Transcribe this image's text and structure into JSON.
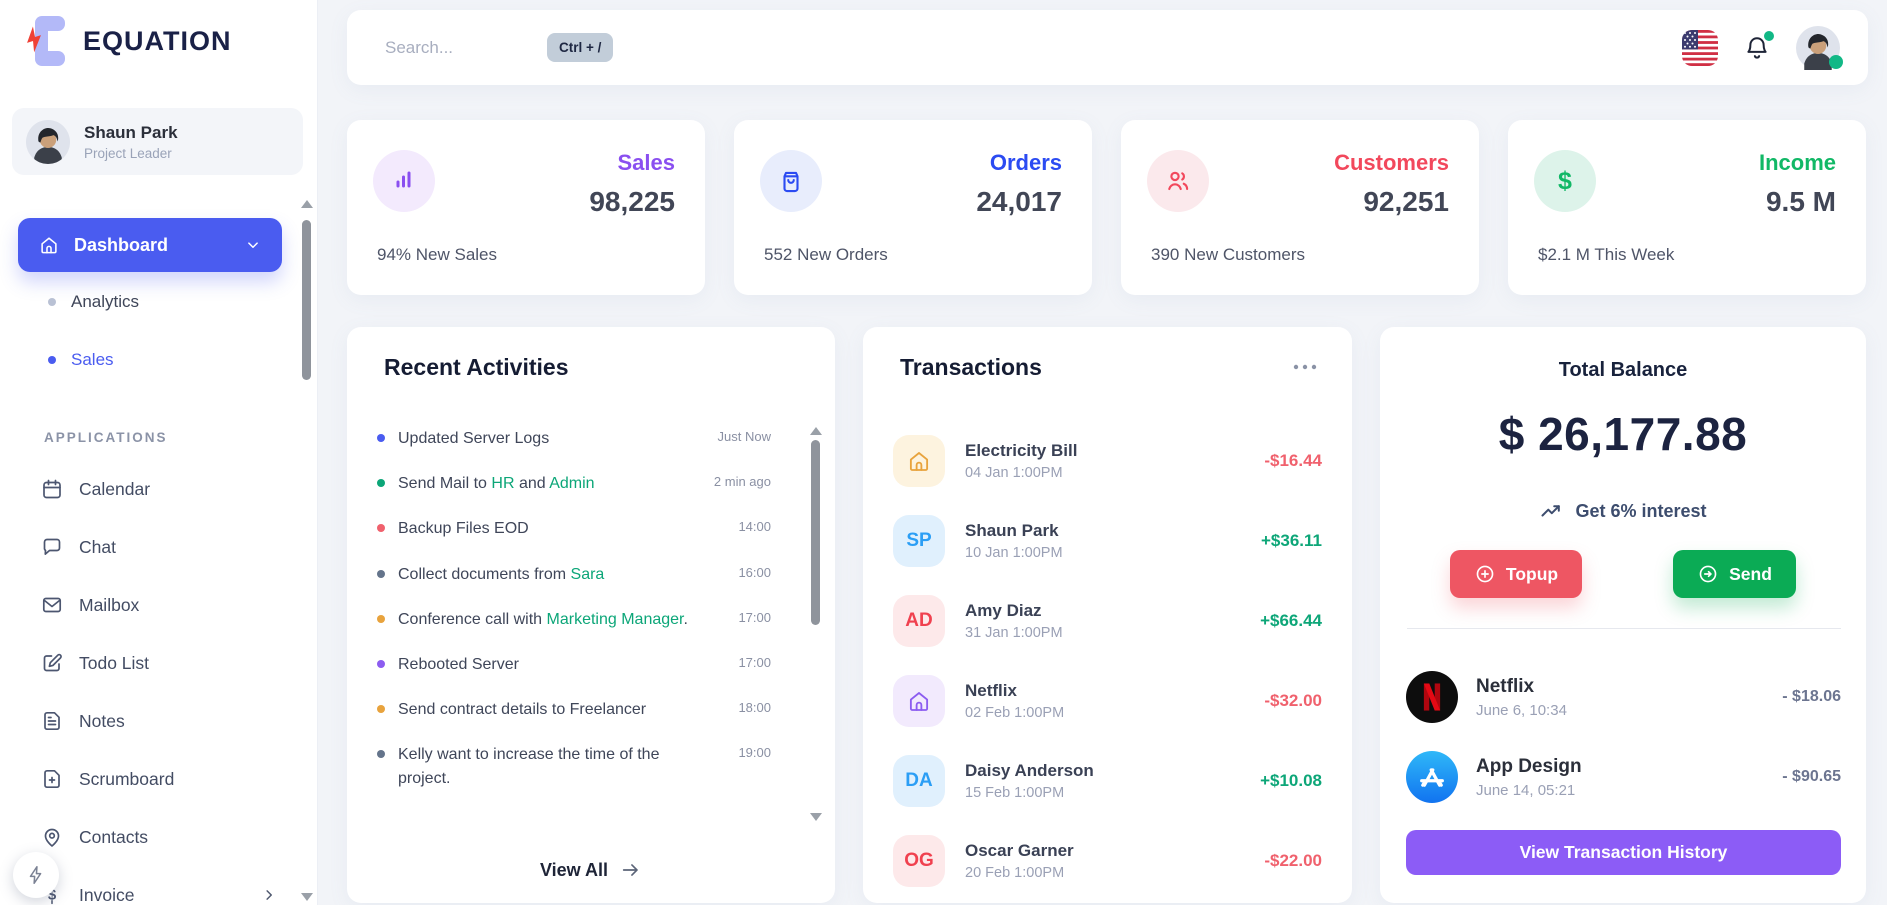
{
  "brand": {
    "name": "EQUATION",
    "logo_icon": "bolt-logo-icon"
  },
  "sidebar": {
    "user": {
      "name": "Shaun Park",
      "role": "Project Leader"
    },
    "dashboard": {
      "label": "Dashboard",
      "icon": "home-icon"
    },
    "submenu": [
      {
        "label": "Analytics",
        "dot_color": "#b9c1d4",
        "active": false
      },
      {
        "label": "Sales",
        "dot_color": "#4a5cf0",
        "active": true
      }
    ],
    "section_label": "APPLICATIONS",
    "apps": [
      {
        "label": "Calendar",
        "icon": "calendar-icon"
      },
      {
        "label": "Chat",
        "icon": "chat-icon"
      },
      {
        "label": "Mailbox",
        "icon": "mailbox-icon"
      },
      {
        "label": "Todo List",
        "icon": "todo-icon"
      },
      {
        "label": "Notes",
        "icon": "notes-icon"
      },
      {
        "label": "Scrumboard",
        "icon": "scrumboard-icon"
      },
      {
        "label": "Contacts",
        "icon": "contacts-icon"
      },
      {
        "label": "Invoice",
        "icon": "invoice-icon",
        "chevron": true
      }
    ]
  },
  "topbar": {
    "search_placeholder": "Search...",
    "shortcut_badge": "Ctrl + /",
    "flag": "us-flag-icon",
    "bell": "bell-icon",
    "status_color": "#12b886"
  },
  "stats": [
    {
      "title": "Sales",
      "value": "98,225",
      "note": "94% New Sales",
      "icon": "bar-chart-icon",
      "accent": "#8a4ff0",
      "icon_bg": "#f3eafd"
    },
    {
      "title": "Orders",
      "value": "24,017",
      "note": "552 New Orders",
      "icon": "shopping-bag-icon",
      "accent": "#2b4bf2",
      "icon_bg": "#e8edfc"
    },
    {
      "title": "Customers",
      "value": "92,251",
      "note": "390 New Customers",
      "icon": "users-icon",
      "accent": "#f2485c",
      "icon_bg": "#fbe9ec"
    },
    {
      "title": "Income",
      "value": "9.5 M",
      "note": "$2.1 M This Week",
      "icon": "dollar-icon",
      "accent": "#11b866",
      "icon_bg": "#ddf3ea"
    }
  ],
  "recent_activities": {
    "title": "Recent Activities",
    "view_all_label": "View All",
    "items": [
      {
        "segments": [
          {
            "text": "Updated Server Logs"
          }
        ],
        "time": "Just Now",
        "dot": "#4a5cf0"
      },
      {
        "segments": [
          {
            "text": "Send Mail to "
          },
          {
            "text": "HR",
            "highlight": true
          },
          {
            "text": " and "
          },
          {
            "text": "Admin",
            "highlight": true
          }
        ],
        "time": "2 min ago",
        "dot": "#0ca678"
      },
      {
        "segments": [
          {
            "text": "Backup Files EOD"
          }
        ],
        "time": "14:00",
        "dot": "#f0616d"
      },
      {
        "segments": [
          {
            "text": "Collect documents from "
          },
          {
            "text": "Sara",
            "highlight": true
          }
        ],
        "time": "16:00",
        "dot": "#64748b"
      },
      {
        "segments": [
          {
            "text": "Conference call with "
          },
          {
            "text": "Marketing Manager",
            "highlight": true
          },
          {
            "text": "."
          }
        ],
        "time": "17:00",
        "dot": "#e8a33d"
      },
      {
        "segments": [
          {
            "text": "Rebooted Server"
          }
        ],
        "time": "17:00",
        "dot": "#8c5cf0"
      },
      {
        "segments": [
          {
            "text": "Send contract details to Freelancer"
          }
        ],
        "time": "18:00",
        "dot": "#e8a33d"
      },
      {
        "segments": [
          {
            "text": "Kelly want to increase the time of the project."
          }
        ],
        "time": "19:00",
        "dot": "#64748b"
      }
    ]
  },
  "transactions": {
    "title": "Transactions",
    "menu_icon": "ellipsis-icon",
    "debit_color": "#f0616d",
    "credit_color": "#0da678",
    "items": [
      {
        "name": "Electricity Bill",
        "date": "04 Jan 1:00PM",
        "amount": "-$16.44",
        "direction": "debit",
        "avatar": {
          "type": "icon",
          "icon": "home-icon",
          "fg": "#e8a33d",
          "bg": "#fdf3df"
        }
      },
      {
        "name": "Shaun Park",
        "date": "10 Jan 1:00PM",
        "amount": "+$36.11",
        "direction": "credit",
        "avatar": {
          "type": "text",
          "text": "SP",
          "fg": "#2b9ef5",
          "bg": "#e0f0fd"
        }
      },
      {
        "name": "Amy Diaz",
        "date": "31 Jan 1:00PM",
        "amount": "+$66.44",
        "direction": "credit",
        "avatar": {
          "type": "text",
          "text": "AD",
          "fg": "#f0414f",
          "bg": "#fde9ea"
        }
      },
      {
        "name": "Netflix",
        "date": "02 Feb 1:00PM",
        "amount": "-$32.00",
        "direction": "debit",
        "avatar": {
          "type": "icon",
          "icon": "home-icon",
          "fg": "#8c5cf0",
          "bg": "#f2eafd"
        }
      },
      {
        "name": "Daisy Anderson",
        "date": "15 Feb 1:00PM",
        "amount": "+$10.08",
        "direction": "credit",
        "avatar": {
          "type": "text",
          "text": "DA",
          "fg": "#2b9ef5",
          "bg": "#e0f0fd"
        }
      },
      {
        "name": "Oscar Garner",
        "date": "20 Feb 1:00PM",
        "amount": "-$22.00",
        "direction": "debit",
        "avatar": {
          "type": "text",
          "text": "OG",
          "fg": "#f0414f",
          "bg": "#fde9ea"
        }
      }
    ]
  },
  "balance": {
    "title": "Total Balance",
    "amount": "$ 26,177.88",
    "interest_label": "Get 6% interest",
    "interest_icon": "trending-up-icon",
    "topup_label": "Topup",
    "topup_icon": "plus-circle-icon",
    "topup_color": "#ee5663",
    "send_label": "Send",
    "send_icon": "arrow-right-circle-icon",
    "send_color": "#0bab55",
    "rows": [
      {
        "name": "Netflix",
        "date": "June 6, 10:34",
        "amount": "- $18.06",
        "logo": "netflix-logo"
      },
      {
        "name": "App Design",
        "date": "June 14, 05:21",
        "amount": "- $90.65",
        "logo": "appstore-logo"
      }
    ],
    "cta_label": "View Transaction History",
    "cta_color": "#8c5cf6"
  }
}
